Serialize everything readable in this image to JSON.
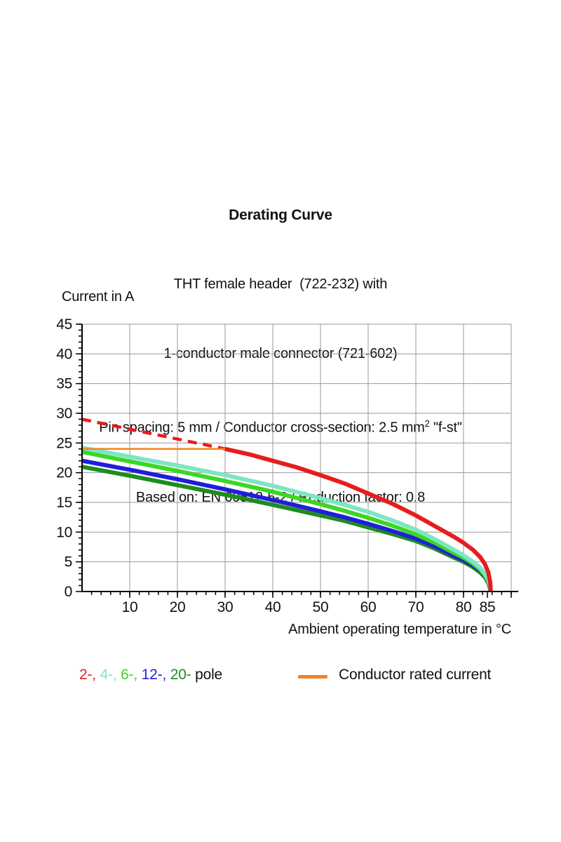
{
  "header": {
    "title": "Derating Curve",
    "line2": "THT female header  (722-232) with",
    "line3": "1-conductor male connector (721-602)",
    "line4": {
      "prefix": "Pin spacing: 5 mm / Conductor cross-section: 2.5 mm",
      "sup": "2",
      "suffix": " \"f-st\""
    },
    "line5": "Based on: EN 60512-5-2 / Reduction factor: 0.8"
  },
  "chart_data": {
    "type": "line",
    "title": "Derating Curve",
    "ylabel": "Current in A",
    "xlabel": "Ambient operating temperature in °C",
    "xlim": [
      0,
      91.5
    ],
    "ylim": [
      0,
      45
    ],
    "grid": true,
    "grid_color": "#999999",
    "axis_color": "#000000",
    "x_gridlines": [
      10,
      20,
      30,
      40,
      50,
      60,
      70,
      80,
      90
    ],
    "x_tick_labels": [
      10,
      20,
      30,
      40,
      50,
      60,
      70,
      80,
      85
    ],
    "x_major_ticks": [
      10,
      20,
      30,
      40,
      50,
      60,
      70,
      80,
      85,
      90
    ],
    "x_minor_step": 2,
    "y_tick_labels": [
      0,
      5,
      10,
      15,
      20,
      25,
      30,
      35,
      40,
      45
    ],
    "y_minor_step": 1,
    "series": [
      {
        "name": "20-pole",
        "color": "#1f8c1f",
        "width": 6,
        "style": "solid",
        "points": [
          [
            0,
            21
          ],
          [
            10,
            19.5
          ],
          [
            20,
            17.9
          ],
          [
            30,
            16.3
          ],
          [
            40,
            14.6
          ],
          [
            50,
            12.8
          ],
          [
            55,
            11.9
          ],
          [
            60,
            10.8
          ],
          [
            65,
            9.7
          ],
          [
            70,
            8.5
          ],
          [
            74,
            7.2
          ],
          [
            78,
            5.7
          ],
          [
            80,
            5.0
          ],
          [
            82,
            4.1
          ],
          [
            83.5,
            3.2
          ],
          [
            84.5,
            2.4
          ],
          [
            85.2,
            1.4
          ],
          [
            85.6,
            0.4
          ],
          [
            85.7,
            0
          ]
        ]
      },
      {
        "name": "12-pole",
        "color": "#1f1fd9",
        "width": 6,
        "style": "solid",
        "points": [
          [
            0,
            22
          ],
          [
            10,
            20.5
          ],
          [
            20,
            18.9
          ],
          [
            30,
            17.2
          ],
          [
            40,
            15.4
          ],
          [
            50,
            13.5
          ],
          [
            55,
            12.5
          ],
          [
            60,
            11.4
          ],
          [
            65,
            10.2
          ],
          [
            70,
            8.9
          ],
          [
            74,
            7.6
          ],
          [
            78,
            6.0
          ],
          [
            80,
            5.3
          ],
          [
            82,
            4.4
          ],
          [
            83.5,
            3.5
          ],
          [
            84.5,
            2.6
          ],
          [
            85.2,
            1.6
          ],
          [
            85.6,
            0.5
          ],
          [
            85.7,
            0
          ]
        ]
      },
      {
        "name": "6-pole",
        "color": "#3dd626",
        "width": 6,
        "style": "solid",
        "points": [
          [
            0,
            23.5
          ],
          [
            10,
            21.9
          ],
          [
            20,
            20.3
          ],
          [
            30,
            18.6
          ],
          [
            40,
            16.8
          ],
          [
            50,
            14.7
          ],
          [
            55,
            13.6
          ],
          [
            60,
            12.4
          ],
          [
            65,
            11.1
          ],
          [
            70,
            9.6
          ],
          [
            74,
            8.2
          ],
          [
            78,
            6.5
          ],
          [
            80,
            5.7
          ],
          [
            82,
            4.7
          ],
          [
            83.5,
            3.7
          ],
          [
            84.5,
            2.7
          ],
          [
            85.2,
            1.7
          ],
          [
            85.6,
            0.6
          ],
          [
            85.7,
            0
          ]
        ]
      },
      {
        "name": "4-pole",
        "color": "#7de6c3",
        "width": 6,
        "style": "solid",
        "points": [
          [
            0,
            24.2
          ],
          [
            10,
            22.7
          ],
          [
            20,
            21.2
          ],
          [
            30,
            19.6
          ],
          [
            40,
            17.8
          ],
          [
            50,
            15.7
          ],
          [
            55,
            14.6
          ],
          [
            60,
            13.4
          ],
          [
            65,
            12.0
          ],
          [
            70,
            10.4
          ],
          [
            74,
            8.8
          ],
          [
            78,
            7.0
          ],
          [
            80,
            6.1
          ],
          [
            82,
            5.0
          ],
          [
            83.5,
            4.0
          ],
          [
            84.5,
            3.0
          ],
          [
            85.2,
            2.0
          ],
          [
            85.6,
            0.8
          ],
          [
            85.7,
            0
          ]
        ]
      },
      {
        "name": "2-pole extrapolated above conductor rating",
        "color": "#e81c1c",
        "width": 4.5,
        "style": "dashed",
        "points": [
          [
            0,
            29
          ],
          [
            30,
            24
          ]
        ]
      },
      {
        "name": "2-pole",
        "color": "#e81c1c",
        "width": 6,
        "style": "solid",
        "points": [
          [
            30,
            24
          ],
          [
            35,
            23.1
          ],
          [
            40,
            22.0
          ],
          [
            45,
            20.9
          ],
          [
            50,
            19.6
          ],
          [
            55,
            18.2
          ],
          [
            60,
            16.5
          ],
          [
            65,
            14.8
          ],
          [
            70,
            12.8
          ],
          [
            74,
            11.0
          ],
          [
            78,
            9.2
          ],
          [
            80,
            8.2
          ],
          [
            82,
            7.0
          ],
          [
            83.5,
            5.8
          ],
          [
            84.5,
            4.6
          ],
          [
            85.2,
            3.2
          ],
          [
            85.6,
            1.5
          ],
          [
            85.7,
            0
          ]
        ]
      },
      {
        "name": "Conductor rated current",
        "color": "#f6821e",
        "width": 2.5,
        "style": "solid",
        "points": [
          [
            0,
            24
          ],
          [
            30,
            24
          ]
        ]
      }
    ]
  },
  "legend": {
    "pole_items": [
      {
        "label": "2-,",
        "color": "#e81c1c"
      },
      {
        "label": "4-,",
        "color": "#7de6c3"
      },
      {
        "label": "6-,",
        "color": "#3dd626"
      },
      {
        "label": "12-,",
        "color": "#1f1fd9"
      },
      {
        "label": "20-",
        "color": "#1f8c1f"
      }
    ],
    "pole_suffix": " pole",
    "rated_label": "Conductor rated current",
    "rated_color": "#f6821e"
  }
}
